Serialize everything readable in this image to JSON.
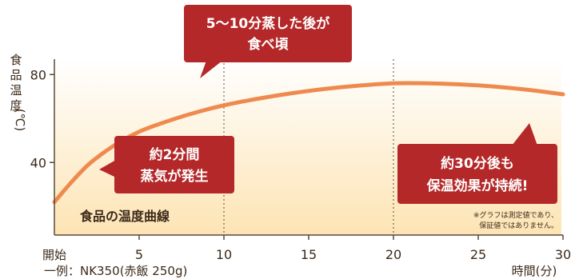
{
  "chart_data": {
    "type": "line",
    "inner_title": "食品の温度曲線",
    "ylabel_chars": [
      "食",
      "品",
      "温",
      "度",
      "(℃)"
    ],
    "xlabel": "時間(分)",
    "x_start_label": "開始",
    "footnote": "一例：NK350(赤飯 250g)",
    "disclaimer": [
      "※グラフは測定値であり、",
      "保証値ではありません。"
    ],
    "xlim": [
      0,
      30
    ],
    "ylim": [
      7,
      87
    ],
    "x_ticks": [
      5,
      10,
      15,
      20,
      25,
      30
    ],
    "y_ticks": [
      40,
      80
    ],
    "reference_lines": [
      10,
      20
    ],
    "series": [
      {
        "x": [
          0,
          1,
          2,
          3,
          4,
          5,
          6,
          8,
          10,
          12,
          14,
          16,
          18,
          20,
          22,
          24,
          26,
          28,
          30
        ],
        "y": [
          22,
          31,
          39,
          45,
          50,
          54,
          57,
          62,
          66,
          69,
          71.5,
          73.5,
          75,
          76,
          76,
          75.5,
          74.5,
          73,
          71
        ]
      }
    ],
    "annotations": [
      {
        "lines": [
          "5〜10分蒸した後が",
          "食べ頃"
        ]
      },
      {
        "lines": [
          "約2分間",
          "蒸気が発生"
        ]
      },
      {
        "lines": [
          "約30分後も",
          "保温効果が持続!"
        ]
      }
    ]
  },
  "colors": {
    "line": "#ef8a4e",
    "callout": "#b52829",
    "callout_text": "#ffffff",
    "plot_gradient_top": "#ffffff",
    "plot_gradient_bottom": "#fde4b4",
    "text": "#3c2a1a",
    "axis": "#5a4a3a"
  }
}
